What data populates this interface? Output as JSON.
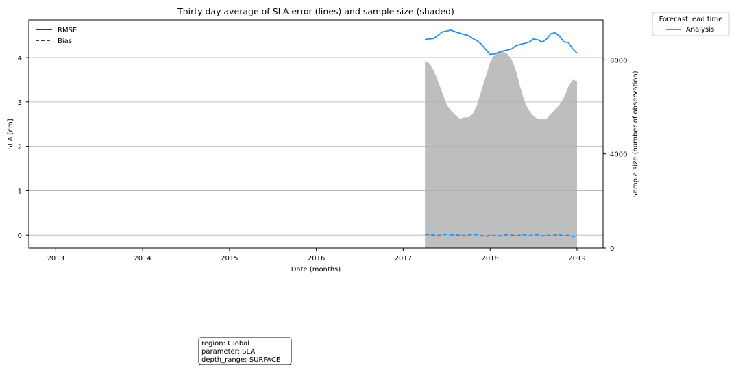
{
  "chart_data": {
    "type": "line",
    "title": "Thirty day average of SLA error (lines) and sample size (shaded)",
    "xlabel": "Date (months)",
    "ylabel": "SLA [cm]",
    "y2label": "Sample size (number of observation)",
    "x_ticks": [
      "2013",
      "2014",
      "2015",
      "2016",
      "2017",
      "2018",
      "2019"
    ],
    "xlim": [
      2012.69,
      2019.3
    ],
    "ylim": [
      -0.29,
      4.85
    ],
    "y_ticks": [
      0,
      1,
      2,
      3,
      4
    ],
    "y2lim": [
      0,
      9700
    ],
    "y2_ticks": [
      0,
      4000,
      8000
    ],
    "grid": "horizontal",
    "style_legend": {
      "placement": "top-left",
      "entries": [
        {
          "label": "RMSE",
          "style": "solid"
        },
        {
          "label": "Bias",
          "style": "dashed"
        }
      ]
    },
    "lead_legend": {
      "title": "Forecast lead time",
      "placement": "outside-top-right",
      "entries": [
        {
          "label": "Analysis",
          "color": "#1f8ff0"
        }
      ]
    },
    "series": [
      {
        "name": "Analysis",
        "metric": "RMSE",
        "color": "#1f8ff0",
        "x": [
          2017.25,
          2017.3,
          2017.35,
          2017.4,
          2017.45,
          2017.5,
          2017.55,
          2017.6,
          2017.65,
          2017.7,
          2017.75,
          2017.8,
          2017.85,
          2017.9,
          2017.95,
          2018.0,
          2018.05,
          2018.1,
          2018.15,
          2018.2,
          2018.25,
          2018.3,
          2018.35,
          2018.4,
          2018.45,
          2018.5,
          2018.55,
          2018.6,
          2018.65,
          2018.7,
          2018.75,
          2018.8,
          2018.85,
          2018.9,
          2018.95,
          2019.0
        ],
        "values": [
          4.41,
          4.42,
          4.43,
          4.5,
          4.58,
          4.6,
          4.62,
          4.58,
          4.55,
          4.52,
          4.5,
          4.43,
          4.38,
          4.3,
          4.18,
          4.07,
          4.08,
          4.12,
          4.15,
          4.17,
          4.2,
          4.27,
          4.3,
          4.32,
          4.35,
          4.42,
          4.4,
          4.35,
          4.42,
          4.54,
          4.56,
          4.48,
          4.35,
          4.34,
          4.2,
          4.1
        ]
      },
      {
        "name": "Analysis",
        "metric": "Bias",
        "color": "#1f8ff0",
        "x": [
          2017.25,
          2017.3,
          2017.35,
          2017.4,
          2017.45,
          2017.5,
          2017.55,
          2017.6,
          2017.65,
          2017.7,
          2017.75,
          2017.8,
          2017.85,
          2017.9,
          2017.95,
          2018.0,
          2018.05,
          2018.1,
          2018.15,
          2018.2,
          2018.25,
          2018.3,
          2018.35,
          2018.4,
          2018.45,
          2018.5,
          2018.55,
          2018.6,
          2018.65,
          2018.7,
          2018.75,
          2018.8,
          2018.85,
          2018.9,
          2018.95,
          2019.0
        ],
        "values": [
          0.02,
          0.01,
          0.0,
          -0.01,
          0.01,
          0.02,
          0.01,
          0.0,
          0.0,
          -0.01,
          0.0,
          0.02,
          0.01,
          -0.01,
          -0.03,
          0.0,
          -0.01,
          -0.02,
          0.0,
          0.01,
          0.0,
          -0.01,
          0.0,
          0.01,
          -0.01,
          0.0,
          0.01,
          -0.02,
          0.0,
          -0.01,
          0.0,
          0.01,
          -0.02,
          0.0,
          -0.03,
          -0.01
        ]
      },
      {
        "name": "Sample size",
        "metric": "Sample size",
        "axis": "right",
        "type": "area",
        "color": "#bebebe",
        "x": [
          2017.25,
          2017.3,
          2017.35,
          2017.4,
          2017.45,
          2017.5,
          2017.55,
          2017.6,
          2017.65,
          2017.7,
          2017.75,
          2017.8,
          2017.85,
          2017.9,
          2017.95,
          2018.0,
          2018.05,
          2018.1,
          2018.15,
          2018.2,
          2018.25,
          2018.3,
          2018.35,
          2018.4,
          2018.45,
          2018.5,
          2018.55,
          2018.6,
          2018.65,
          2018.7,
          2018.75,
          2018.8,
          2018.85,
          2018.9,
          2018.95,
          2019.0
        ],
        "values": [
          7950,
          7850,
          7550,
          7100,
          6600,
          6100,
          5850,
          5650,
          5500,
          5550,
          5560,
          5700,
          6100,
          6700,
          7300,
          7900,
          8200,
          8350,
          8350,
          8250,
          8000,
          7500,
          6800,
          6200,
          5850,
          5600,
          5500,
          5480,
          5500,
          5700,
          5900,
          6100,
          6400,
          6850,
          7150,
          7100
        ]
      }
    ]
  },
  "info_box": {
    "lines": [
      "region: Global",
      "parameter: SLA",
      "depth_range: SURFACE"
    ]
  }
}
